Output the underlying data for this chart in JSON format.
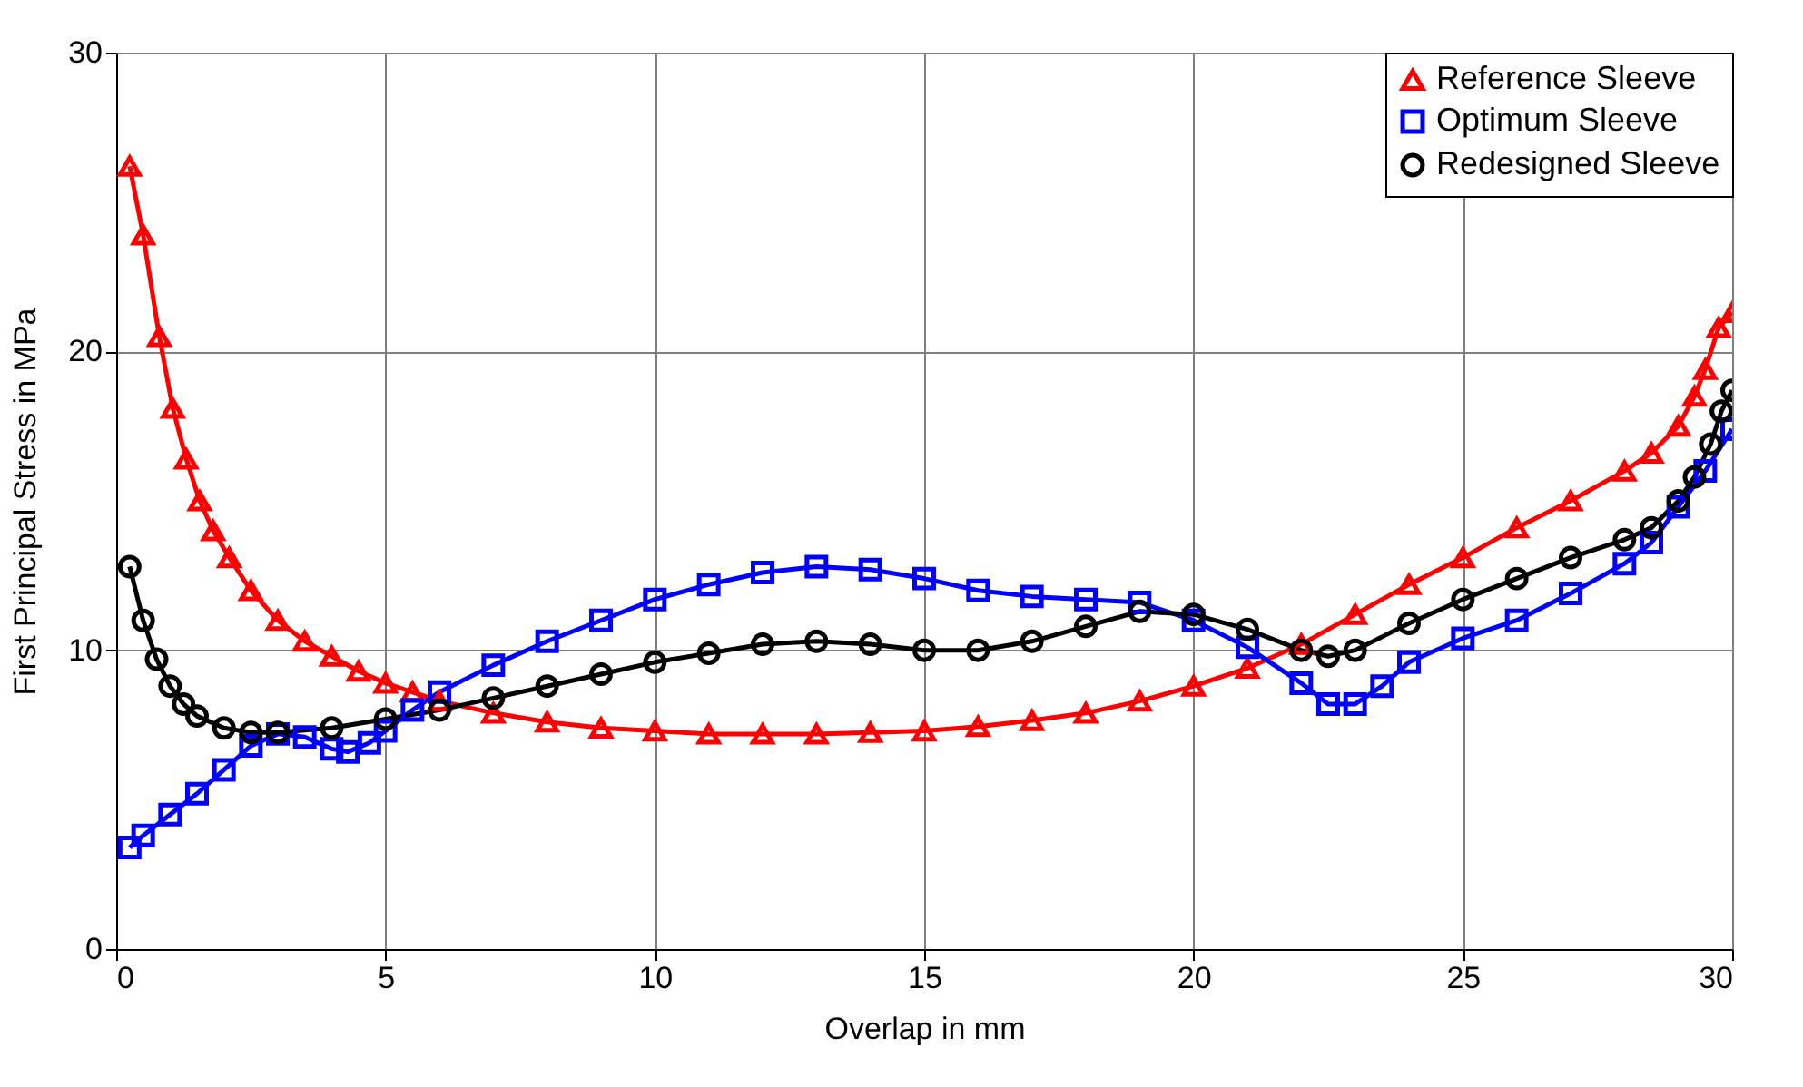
{
  "chart_data": {
    "type": "line",
    "xlabel": "Overlap in mm",
    "ylabel": "First Principal Stress in MPa",
    "xlim": [
      0,
      30
    ],
    "ylim": [
      0,
      30
    ],
    "xticks": [
      0,
      5,
      10,
      15,
      20,
      25,
      30
    ],
    "yticks": [
      0,
      10,
      20,
      30
    ],
    "grid": true,
    "legend": "top right",
    "line_style": "solid",
    "series": [
      {
        "name": "Reference Sleeve",
        "color": "#ff0000",
        "marker": "triangle",
        "x": [
          0.25,
          0.5,
          0.8,
          1.05,
          1.3,
          1.55,
          1.8,
          2.1,
          2.5,
          3,
          3.5,
          4,
          4.5,
          5,
          5.5,
          6,
          7,
          8,
          9,
          10,
          11,
          12,
          13,
          14,
          15,
          16,
          17,
          18,
          19,
          20,
          21,
          22,
          23,
          24,
          25,
          26,
          27,
          28,
          28.5,
          29,
          29.3,
          29.5,
          29.75,
          30
        ],
        "values": [
          26.2,
          23.9,
          20.5,
          18.1,
          16.4,
          15.0,
          14.0,
          13.1,
          12.0,
          11.0,
          10.3,
          9.8,
          9.3,
          8.9,
          8.6,
          8.3,
          7.9,
          7.6,
          7.4,
          7.3,
          7.2,
          7.2,
          7.2,
          7.25,
          7.3,
          7.45,
          7.65,
          7.9,
          8.3,
          8.8,
          9.4,
          10.2,
          11.2,
          12.2,
          13.1,
          14.1,
          15.0,
          16.0,
          16.6,
          17.5,
          18.5,
          19.4,
          20.8,
          21.3
        ]
      },
      {
        "name": "Optimum Sleeve",
        "color": "#0000ff",
        "marker": "square",
        "x": [
          0.25,
          0.5,
          1,
          1.5,
          2,
          2.5,
          3,
          3.5,
          4,
          4.3,
          4.7,
          5,
          5.5,
          6,
          7,
          8,
          9,
          10,
          11,
          12,
          13,
          14,
          15,
          16,
          17,
          18,
          19,
          20,
          21,
          22,
          22.5,
          23,
          23.5,
          24,
          25,
          26,
          27,
          28,
          28.5,
          29,
          29.5,
          30
        ],
        "values": [
          3.4,
          3.8,
          4.5,
          5.2,
          6.0,
          6.8,
          7.2,
          7.1,
          6.7,
          6.6,
          6.9,
          7.3,
          8.0,
          8.6,
          9.5,
          10.3,
          11.0,
          11.7,
          12.2,
          12.6,
          12.8,
          12.7,
          12.4,
          12.0,
          11.8,
          11.7,
          11.6,
          11.0,
          10.1,
          8.9,
          8.2,
          8.2,
          8.8,
          9.6,
          10.4,
          11.0,
          11.9,
          12.9,
          13.6,
          14.8,
          16.0,
          17.4
        ]
      },
      {
        "name": "Redesigned Sleeve",
        "color": "#000000",
        "marker": "circle",
        "x": [
          0.25,
          0.5,
          0.75,
          1,
          1.25,
          1.5,
          2,
          2.5,
          3,
          4,
          5,
          6,
          7,
          8,
          9,
          10,
          11,
          12,
          13,
          14,
          15,
          16,
          17,
          18,
          19,
          20,
          21,
          22,
          22.5,
          23,
          24,
          25,
          26,
          27,
          28,
          28.5,
          29,
          29.3,
          29.6,
          29.8,
          30
        ],
        "values": [
          12.8,
          11.0,
          9.7,
          8.8,
          8.2,
          7.8,
          7.4,
          7.25,
          7.25,
          7.4,
          7.7,
          8.0,
          8.4,
          8.8,
          9.2,
          9.6,
          9.9,
          10.2,
          10.3,
          10.2,
          10.0,
          10.0,
          10.3,
          10.8,
          11.3,
          11.2,
          10.7,
          10.0,
          9.8,
          10.0,
          10.9,
          11.7,
          12.4,
          13.1,
          13.7,
          14.1,
          15.0,
          15.8,
          16.9,
          18.0,
          18.7
        ]
      }
    ]
  }
}
